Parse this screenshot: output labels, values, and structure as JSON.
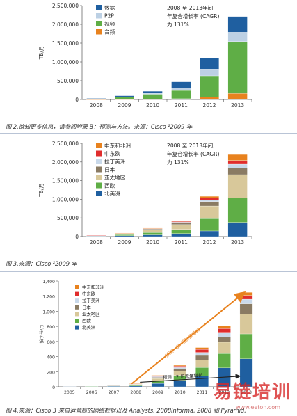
{
  "chart_data": [
    {
      "type": "bar",
      "stacked": true,
      "categories": [
        "2008",
        "2009",
        "2010",
        "2011",
        "2012",
        "2013"
      ],
      "ylabel": "TB/月",
      "ylim": [
        0,
        2500000
      ],
      "yticks": [
        "0",
        "500,000",
        "1,000,000",
        "1,500,000",
        "2,000,000",
        "2,500,000"
      ],
      "annotation": [
        "2008 至 2013年间,",
        "年复合增长率 (CAGR)",
        "为 131%"
      ],
      "legend_position": "top-left",
      "series": [
        {
          "name": "音频",
          "color": "#e8821e",
          "values": [
            2000,
            5000,
            10000,
            20000,
            70000,
            160000
          ]
        },
        {
          "name": "视频",
          "color": "#5fae46",
          "values": [
            12000,
            55000,
            130000,
            220000,
            560000,
            1380000
          ]
        },
        {
          "name": "P2P",
          "color": "#bcd0e4",
          "values": [
            6000,
            12000,
            25000,
            60000,
            180000,
            250000
          ]
        },
        {
          "name": "数据",
          "color": "#1f5fa0",
          "values": [
            10000,
            28000,
            55000,
            170000,
            290000,
            420000
          ]
        }
      ]
    },
    {
      "type": "bar",
      "stacked": true,
      "categories": [
        "2008",
        "2009",
        "2010",
        "2011",
        "2012",
        "2013"
      ],
      "ylabel": "TB/月",
      "ylim": [
        0,
        2500000
      ],
      "yticks": [
        "0",
        "500,000",
        "1,000,000",
        "1,500,000",
        "2,000,000",
        "2,500,000"
      ],
      "annotation": [
        "2008 至 2013年间,",
        "年复合增长率 (CAGR)",
        "为 131%"
      ],
      "legend_position": "top-left",
      "series": [
        {
          "name": "北美洲",
          "color": "#1f5fa0",
          "values": [
            10000,
            25000,
            45000,
            80000,
            150000,
            380000
          ]
        },
        {
          "name": "西欧",
          "color": "#5fae46",
          "values": [
            10000,
            25000,
            60000,
            110000,
            330000,
            650000
          ]
        },
        {
          "name": "亚太地区",
          "color": "#d8c89a",
          "values": [
            8000,
            28000,
            70000,
            130000,
            340000,
            630000
          ]
        },
        {
          "name": "日本",
          "color": "#8a7b63",
          "values": [
            1500,
            8000,
            25000,
            45000,
            120000,
            180000
          ]
        },
        {
          "name": "拉丁美洲",
          "color": "#c9d9ea",
          "values": [
            500,
            3000,
            10000,
            20000,
            40000,
            100000
          ]
        },
        {
          "name": "中东欧",
          "color": "#e02d2d",
          "values": [
            500,
            3000,
            10000,
            20000,
            50000,
            100000
          ]
        },
        {
          "name": "中东和非洲",
          "color": "#e8821e",
          "values": [
            0,
            2000,
            5000,
            15000,
            50000,
            160000
          ]
        }
      ]
    },
    {
      "type": "bar",
      "stacked": true,
      "categories": [
        "2005",
        "2006",
        "2007",
        "2008",
        "2009",
        "2010",
        "2011",
        "2012",
        "2013"
      ],
      "ylabel": "拍字节/月",
      "ylim": [
        0,
        1400
      ],
      "yticks": [
        "0",
        "200",
        "400",
        "600",
        "800",
        "1,000",
        "1,200",
        "1,400"
      ],
      "legend_position": "top-left",
      "arrow_labels": [
        "预测：35 倍流量增长",
        "预测：2 倍流量增长"
      ],
      "series": [
        {
          "name": "北美洲",
          "color": "#1f5fa0",
          "values": [
            2,
            6,
            10,
            12,
            45,
            85,
            140,
            250,
            370
          ]
        },
        {
          "name": "西欧",
          "color": "#5fae46",
          "values": [
            0,
            1,
            3,
            10,
            35,
            65,
            115,
            190,
            330
          ]
        },
        {
          "name": "亚太地区",
          "color": "#d8c89a",
          "values": [
            0,
            0,
            2,
            8,
            30,
            55,
            100,
            150,
            260
          ]
        },
        {
          "name": "日本",
          "color": "#8a7b63",
          "values": [
            0,
            0,
            1,
            5,
            15,
            30,
            60,
            70,
            140
          ]
        },
        {
          "name": "拉丁美洲",
          "color": "#c9d9ea",
          "values": [
            0,
            0,
            0,
            3,
            10,
            20,
            40,
            60,
            60
          ]
        },
        {
          "name": "中东欧",
          "color": "#e02d2d",
          "values": [
            0,
            0,
            0,
            3,
            15,
            20,
            40,
            50,
            50
          ]
        },
        {
          "name": "中东和非洲",
          "color": "#e8821e",
          "values": [
            0,
            0,
            0,
            2,
            5,
            10,
            25,
            40,
            40
          ]
        }
      ]
    }
  ],
  "captions": {
    "fig2": "图 2.欲知更多信息，请参阅附录 B：预测与方法。来源：Cisco ²2009 年",
    "fig3": "图 3.来源：Cisco ²2009 年",
    "fig4": "图 4.来源：Cisco 3 来自运营商的网络数据以及 Analysts, 2008Informa, 2008 和 Pyramid,"
  },
  "watermark": "易链培训",
  "watermark_url": "www.eeton.com"
}
